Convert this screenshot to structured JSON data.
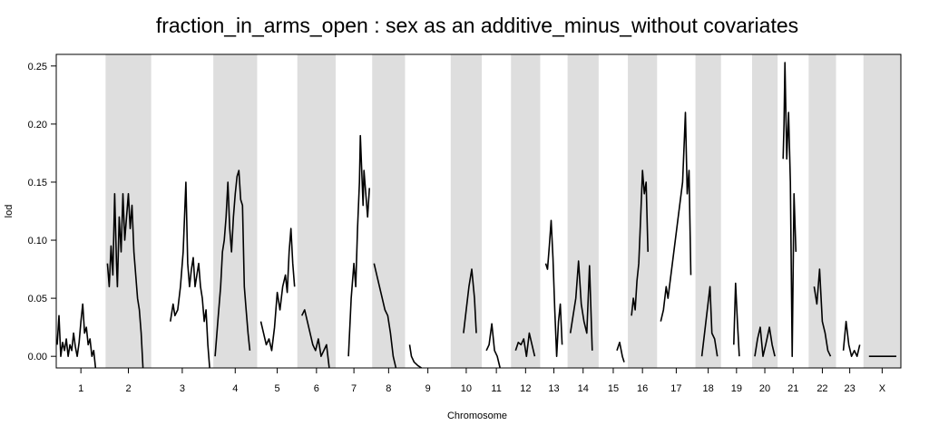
{
  "chart_data": {
    "type": "line",
    "title": "fraction_in_arms_open : sex as an additive_minus_without covariates",
    "xlabel": "Chromosome",
    "ylabel": "lod",
    "ylim": [
      -0.01,
      0.26
    ],
    "y_ticks": [
      0.0,
      0.05,
      0.1,
      0.15,
      0.2,
      0.25
    ],
    "y_tick_labels": [
      "0.00",
      "0.05",
      "0.10",
      "0.15",
      "0.20",
      "0.25"
    ],
    "grid": false,
    "alternating_band_color": "#dedede",
    "line_color": "#000000",
    "chromosomes": [
      {
        "label": "1",
        "start": 0,
        "end": 54,
        "shaded": false,
        "points": [
          [
            1,
            0.01
          ],
          [
            3,
            0.035
          ],
          [
            5,
            0.0
          ],
          [
            7,
            0.012
          ],
          [
            9,
            0.005
          ],
          [
            11,
            0.015
          ],
          [
            13,
            0.0
          ],
          [
            15,
            0.01
          ],
          [
            17,
            0.005
          ],
          [
            19,
            0.02
          ],
          [
            21,
            0.008
          ],
          [
            23,
            0.0
          ],
          [
            25,
            0.012
          ],
          [
            27,
            0.03
          ],
          [
            29,
            0.045
          ],
          [
            31,
            0.02
          ],
          [
            33,
            0.025
          ],
          [
            35,
            0.01
          ],
          [
            37,
            0.015
          ],
          [
            39,
            0.0
          ],
          [
            41,
            0.005
          ],
          [
            43,
            -0.01
          ]
        ]
      },
      {
        "label": "2",
        "start": 54,
        "end": 104,
        "shaded": true,
        "points": [
          [
            56,
            0.08
          ],
          [
            58,
            0.06
          ],
          [
            60,
            0.095
          ],
          [
            62,
            0.07
          ],
          [
            64,
            0.14
          ],
          [
            66,
            0.08
          ],
          [
            67,
            0.06
          ],
          [
            69,
            0.12
          ],
          [
            71,
            0.09
          ],
          [
            73,
            0.14
          ],
          [
            75,
            0.1
          ],
          [
            77,
            0.12
          ],
          [
            79,
            0.14
          ],
          [
            81,
            0.11
          ],
          [
            83,
            0.13
          ],
          [
            85,
            0.09
          ],
          [
            87,
            0.07
          ],
          [
            89,
            0.05
          ],
          [
            91,
            0.04
          ],
          [
            93,
            0.02
          ],
          [
            95,
            -0.01
          ]
        ]
      },
      {
        "label": "3",
        "start": 104,
        "end": 172,
        "shaded": false,
        "points": [
          [
            125,
            0.03
          ],
          [
            128,
            0.045
          ],
          [
            130,
            0.035
          ],
          [
            133,
            0.04
          ],
          [
            136,
            0.06
          ],
          [
            139,
            0.09
          ],
          [
            142,
            0.15
          ],
          [
            144,
            0.08
          ],
          [
            146,
            0.06
          ],
          [
            148,
            0.075
          ],
          [
            150,
            0.085
          ],
          [
            152,
            0.06
          ],
          [
            154,
            0.07
          ],
          [
            156,
            0.08
          ],
          [
            158,
            0.06
          ],
          [
            160,
            0.05
          ],
          [
            162,
            0.03
          ],
          [
            164,
            0.04
          ],
          [
            166,
            0.01
          ],
          [
            168,
            -0.01
          ]
        ]
      },
      {
        "label": "4",
        "start": 172,
        "end": 220,
        "shaded": true,
        "points": [
          [
            174,
            0.0
          ],
          [
            177,
            0.03
          ],
          [
            180,
            0.06
          ],
          [
            182,
            0.09
          ],
          [
            184,
            0.1
          ],
          [
            186,
            0.12
          ],
          [
            188,
            0.15
          ],
          [
            190,
            0.11
          ],
          [
            192,
            0.09
          ],
          [
            194,
            0.12
          ],
          [
            196,
            0.14
          ],
          [
            198,
            0.155
          ],
          [
            200,
            0.16
          ],
          [
            202,
            0.135
          ],
          [
            204,
            0.13
          ],
          [
            206,
            0.06
          ],
          [
            208,
            0.04
          ],
          [
            210,
            0.02
          ],
          [
            212,
            0.005
          ]
        ]
      },
      {
        "label": "5",
        "start": 220,
        "end": 264,
        "shaded": false,
        "points": [
          [
            224,
            0.03
          ],
          [
            227,
            0.02
          ],
          [
            230,
            0.01
          ],
          [
            233,
            0.015
          ],
          [
            236,
            0.005
          ],
          [
            239,
            0.025
          ],
          [
            242,
            0.055
          ],
          [
            245,
            0.04
          ],
          [
            248,
            0.06
          ],
          [
            251,
            0.07
          ],
          [
            253,
            0.055
          ],
          [
            255,
            0.09
          ],
          [
            257,
            0.11
          ],
          [
            259,
            0.08
          ],
          [
            261,
            0.06
          ]
        ]
      },
      {
        "label": "6",
        "start": 264,
        "end": 306,
        "shaded": true,
        "points": [
          [
            269,
            0.035
          ],
          [
            272,
            0.04
          ],
          [
            275,
            0.03
          ],
          [
            278,
            0.02
          ],
          [
            281,
            0.01
          ],
          [
            284,
            0.005
          ],
          [
            287,
            0.015
          ],
          [
            290,
            0.0
          ],
          [
            293,
            0.005
          ],
          [
            296,
            0.01
          ],
          [
            299,
            -0.01
          ]
        ]
      },
      {
        "label": "7",
        "start": 306,
        "end": 346,
        "shaded": false,
        "points": [
          [
            320,
            0.0
          ],
          [
            323,
            0.05
          ],
          [
            326,
            0.08
          ],
          [
            328,
            0.06
          ],
          [
            330,
            0.11
          ],
          [
            332,
            0.15
          ],
          [
            333,
            0.19
          ],
          [
            334,
            0.17
          ],
          [
            336,
            0.13
          ],
          [
            337,
            0.16
          ],
          [
            339,
            0.14
          ],
          [
            341,
            0.12
          ],
          [
            343,
            0.145
          ]
        ]
      },
      {
        "label": "8",
        "start": 346,
        "end": 382,
        "shaded": true,
        "points": [
          [
            348,
            0.08
          ],
          [
            351,
            0.07
          ],
          [
            354,
            0.06
          ],
          [
            357,
            0.05
          ],
          [
            360,
            0.04
          ],
          [
            363,
            0.035
          ],
          [
            366,
            0.02
          ],
          [
            369,
            0.0
          ],
          [
            372,
            -0.01
          ]
        ]
      },
      {
        "label": "9",
        "start": 382,
        "end": 432,
        "shaded": false,
        "points": [
          [
            387,
            0.01
          ],
          [
            389,
            0.0
          ],
          [
            392,
            -0.005
          ],
          [
            396,
            -0.008
          ],
          [
            400,
            -0.01
          ]
        ]
      },
      {
        "label": "10",
        "start": 432,
        "end": 466,
        "shaded": true,
        "points": [
          [
            446,
            0.02
          ],
          [
            449,
            0.04
          ],
          [
            452,
            0.06
          ],
          [
            455,
            0.075
          ],
          [
            458,
            0.05
          ],
          [
            460,
            0.02
          ]
        ]
      },
      {
        "label": "11",
        "start": 466,
        "end": 498,
        "shaded": false,
        "points": [
          [
            471,
            0.005
          ],
          [
            474,
            0.01
          ],
          [
            477,
            0.028
          ],
          [
            480,
            0.005
          ],
          [
            483,
            0.0
          ],
          [
            486,
            -0.01
          ]
        ]
      },
      {
        "label": "12",
        "start": 498,
        "end": 530,
        "shaded": true,
        "points": [
          [
            503,
            0.005
          ],
          [
            506,
            0.012
          ],
          [
            509,
            0.01
          ],
          [
            512,
            0.015
          ],
          [
            515,
            0.0
          ],
          [
            518,
            0.02
          ],
          [
            521,
            0.01
          ],
          [
            524,
            0.0
          ]
        ]
      },
      {
        "label": "13",
        "start": 530,
        "end": 560,
        "shaded": false,
        "points": [
          [
            536,
            0.08
          ],
          [
            538,
            0.075
          ],
          [
            540,
            0.095
          ],
          [
            542,
            0.117
          ],
          [
            544,
            0.085
          ],
          [
            546,
            0.04
          ],
          [
            548,
            0.0
          ],
          [
            550,
            0.03
          ],
          [
            552,
            0.045
          ],
          [
            554,
            0.01
          ]
        ]
      },
      {
        "label": "14",
        "start": 560,
        "end": 594,
        "shaded": true,
        "points": [
          [
            563,
            0.02
          ],
          [
            566,
            0.035
          ],
          [
            569,
            0.05
          ],
          [
            572,
            0.082
          ],
          [
            575,
            0.045
          ],
          [
            578,
            0.03
          ],
          [
            581,
            0.02
          ],
          [
            584,
            0.078
          ],
          [
            587,
            0.005
          ]
        ]
      },
      {
        "label": "15",
        "start": 594,
        "end": 626,
        "shaded": false,
        "points": [
          [
            614,
            0.005
          ],
          [
            617,
            0.012
          ],
          [
            620,
            0.0
          ],
          [
            622,
            -0.005
          ]
        ]
      },
      {
        "label": "16",
        "start": 626,
        "end": 658,
        "shaded": true,
        "points": [
          [
            630,
            0.035
          ],
          [
            632,
            0.05
          ],
          [
            634,
            0.04
          ],
          [
            636,
            0.065
          ],
          [
            638,
            0.08
          ],
          [
            640,
            0.12
          ],
          [
            642,
            0.16
          ],
          [
            644,
            0.14
          ],
          [
            646,
            0.15
          ],
          [
            648,
            0.09
          ]
        ]
      },
      {
        "label": "17",
        "start": 658,
        "end": 700,
        "shaded": false,
        "points": [
          [
            662,
            0.03
          ],
          [
            665,
            0.04
          ],
          [
            668,
            0.06
          ],
          [
            670,
            0.05
          ],
          [
            686,
            0.15
          ],
          [
            688,
            0.19
          ],
          [
            689,
            0.21
          ],
          [
            691,
            0.14
          ],
          [
            693,
            0.16
          ],
          [
            695,
            0.07
          ]
        ]
      },
      {
        "label": "18",
        "start": 700,
        "end": 728,
        "shaded": true,
        "points": [
          [
            707,
            0.0
          ],
          [
            710,
            0.02
          ],
          [
            713,
            0.04
          ],
          [
            716,
            0.06
          ],
          [
            718,
            0.02
          ],
          [
            721,
            0.015
          ],
          [
            724,
            0.0
          ]
        ]
      },
      {
        "label": "19",
        "start": 728,
        "end": 762,
        "shaded": false,
        "points": [
          [
            742,
            0.01
          ],
          [
            744,
            0.063
          ],
          [
            746,
            0.03
          ],
          [
            748,
            0.0
          ]
        ]
      },
      {
        "label": "20",
        "start": 762,
        "end": 790,
        "shaded": true,
        "points": [
          [
            765,
            0.0
          ],
          [
            768,
            0.015
          ],
          [
            771,
            0.025
          ],
          [
            774,
            0.0
          ],
          [
            777,
            0.01
          ],
          [
            781,
            0.025
          ],
          [
            784,
            0.01
          ],
          [
            787,
            0.0
          ]
        ]
      },
      {
        "label": "21",
        "start": 790,
        "end": 824,
        "shaded": false,
        "points": [
          [
            796,
            0.17
          ],
          [
            797,
            0.2
          ],
          [
            798,
            0.253
          ],
          [
            800,
            0.17
          ],
          [
            802,
            0.21
          ],
          [
            804,
            0.15
          ],
          [
            806,
            0.0
          ],
          [
            808,
            0.14
          ],
          [
            810,
            0.09
          ]
        ]
      },
      {
        "label": "22",
        "start": 824,
        "end": 854,
        "shaded": true,
        "points": [
          [
            830,
            0.06
          ],
          [
            833,
            0.045
          ],
          [
            836,
            0.075
          ],
          [
            839,
            0.03
          ],
          [
            842,
            0.02
          ],
          [
            845,
            0.005
          ],
          [
            848,
            0.0
          ]
        ]
      },
      {
        "label": "23",
        "start": 854,
        "end": 884,
        "shaded": false,
        "points": [
          [
            862,
            0.005
          ],
          [
            865,
            0.03
          ],
          [
            868,
            0.01
          ],
          [
            871,
            0.0
          ],
          [
            874,
            0.005
          ],
          [
            877,
            0.0
          ],
          [
            880,
            0.01
          ]
        ]
      },
      {
        "label": "X",
        "start": 884,
        "end": 925,
        "shaded": true,
        "points": [
          [
            890,
            0.0
          ],
          [
            896,
            0.0
          ],
          [
            902,
            0.0
          ],
          [
            908,
            0.0
          ],
          [
            914,
            0.0
          ],
          [
            920,
            0.0
          ]
        ]
      }
    ]
  }
}
